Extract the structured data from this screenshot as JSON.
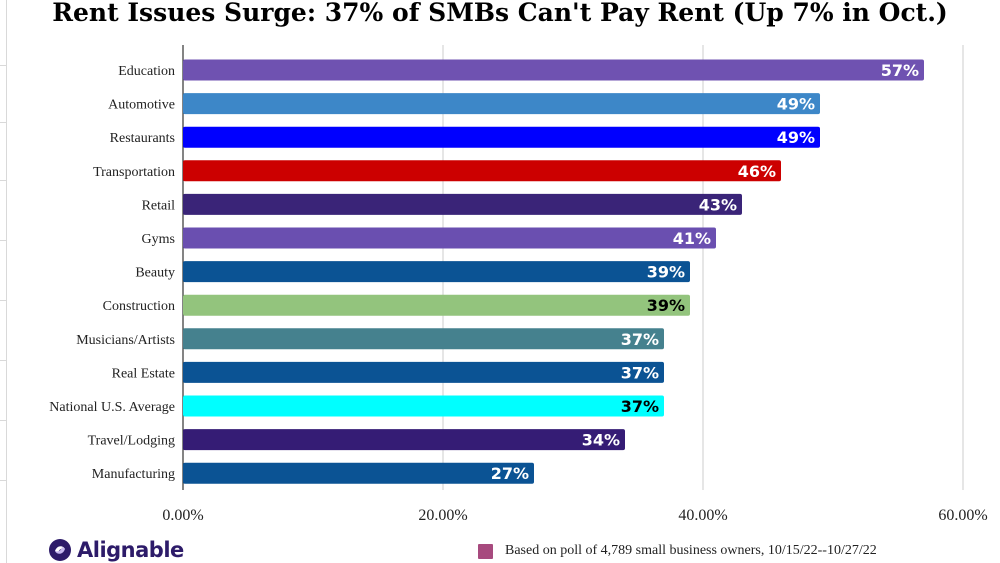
{
  "chart_data": {
    "type": "bar",
    "orientation": "horizontal",
    "title": "Rent Issues Surge: 37% of SMBs Can't Pay Rent (Up 7% in Oct.)",
    "categories": [
      "Education",
      "Automotive",
      "Restaurants",
      "Transportation",
      "Retail",
      "Gyms",
      "Beauty",
      "Construction",
      "Musicians/Artists",
      "Real Estate",
      "National U.S. Average",
      "Travel/Lodging",
      "Manufacturing"
    ],
    "values": [
      57,
      49,
      49,
      46,
      43,
      41,
      39,
      39,
      37,
      37,
      37,
      34,
      27
    ],
    "value_labels": [
      "57%",
      "49%",
      "49%",
      "46%",
      "43%",
      "41%",
      "39%",
      "39%",
      "37%",
      "37%",
      "37%",
      "34%",
      "27%"
    ],
    "bar_colors": [
      "#6f52b1",
      "#3d87c8",
      "#0000ff",
      "#cc0000",
      "#3a2478",
      "#6a4fb0",
      "#0b5394",
      "#93c47d",
      "#45818e",
      "#0b5394",
      "#00ffff",
      "#351c75",
      "#0b5394"
    ],
    "label_colors": [
      "#ffffff",
      "#ffffff",
      "#ffffff",
      "#ffffff",
      "#ffffff",
      "#ffffff",
      "#ffffff",
      "#000000",
      "#ffffff",
      "#ffffff",
      "#000000",
      "#ffffff",
      "#ffffff"
    ],
    "xlim": [
      0,
      60
    ],
    "xticks": [
      0,
      20,
      40,
      60
    ],
    "xtick_labels": [
      "0.00%",
      "20.00%",
      "40.00%",
      "60.00%"
    ],
    "grid": true,
    "xlabel": "",
    "ylabel": ""
  },
  "footer": {
    "brand": "Alignable",
    "note": "Based on poll of 4,789 small business owners, 10/15/22--10/27/22",
    "note_swatch_color": "#a74a7e",
    "brand_color": "#2d1b69"
  }
}
